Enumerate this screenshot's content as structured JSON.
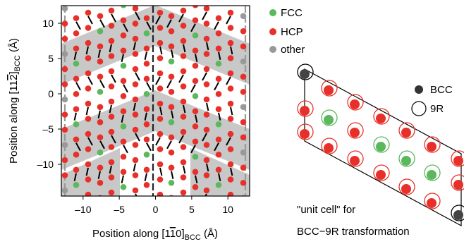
{
  "left_panel": {
    "xlabel": {
      "main": "Position along [1",
      "bar": "1",
      "mid": "0]",
      "sub": "BCC",
      "unit": " (Å)"
    },
    "ylabel": {
      "main": "Position along [11",
      "bar": "2",
      "mid": "]",
      "sub": "BCC",
      "unit": " (Å)"
    },
    "x_ticks": [
      {
        "value": -10,
        "label": "–10"
      },
      {
        "value": -5,
        "label": "–5"
      },
      {
        "value": 0,
        "label": "0"
      },
      {
        "value": 5,
        "label": "5"
      },
      {
        "value": 10,
        "label": "10"
      }
    ],
    "y_ticks": [
      {
        "value": 10,
        "label": "10"
      },
      {
        "value": 5,
        "label": "5"
      },
      {
        "value": 0,
        "label": "0"
      },
      {
        "value": -5,
        "label": "–5"
      },
      {
        "value": -10,
        "label": "–10"
      }
    ],
    "xlim": [
      -13,
      13
    ],
    "ylim": [
      -14.5,
      12.5
    ]
  },
  "legend": [
    {
      "label": "FCC",
      "color": "#5cb85c"
    },
    {
      "label": "HCP",
      "color": "#e8302a"
    },
    {
      "label": "other",
      "color": "#999999"
    }
  ],
  "right_panel": {
    "legend": [
      {
        "label": "BCC",
        "marker": "filled"
      },
      {
        "label": "9R",
        "marker": "open"
      }
    ],
    "caption_line1": "\"unit cell\" for",
    "caption_line2": "BCC−9R transformation"
  },
  "colors": {
    "fcc": "#5cb85c",
    "hcp": "#e8302a",
    "other": "#999999",
    "band": "#c8c8c8",
    "bcc_marker": "#444444"
  }
}
